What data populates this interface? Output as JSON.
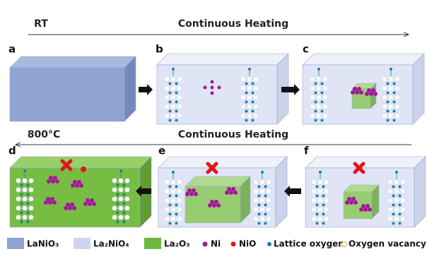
{
  "top_row": {
    "start_label": "RT",
    "process": "Continuous Heating",
    "panels": [
      "a",
      "b",
      "c"
    ]
  },
  "bottom_row": {
    "start_label": "800°C",
    "process": "Continuous Heating",
    "panels": [
      "d",
      "e",
      "f"
    ]
  },
  "legend": [
    "LaNiO₃",
    "La₂NiO₄",
    "La₂O₃",
    "Ni",
    "NiO",
    "Lattice oxygen",
    "Oxygen vacancy"
  ]
}
